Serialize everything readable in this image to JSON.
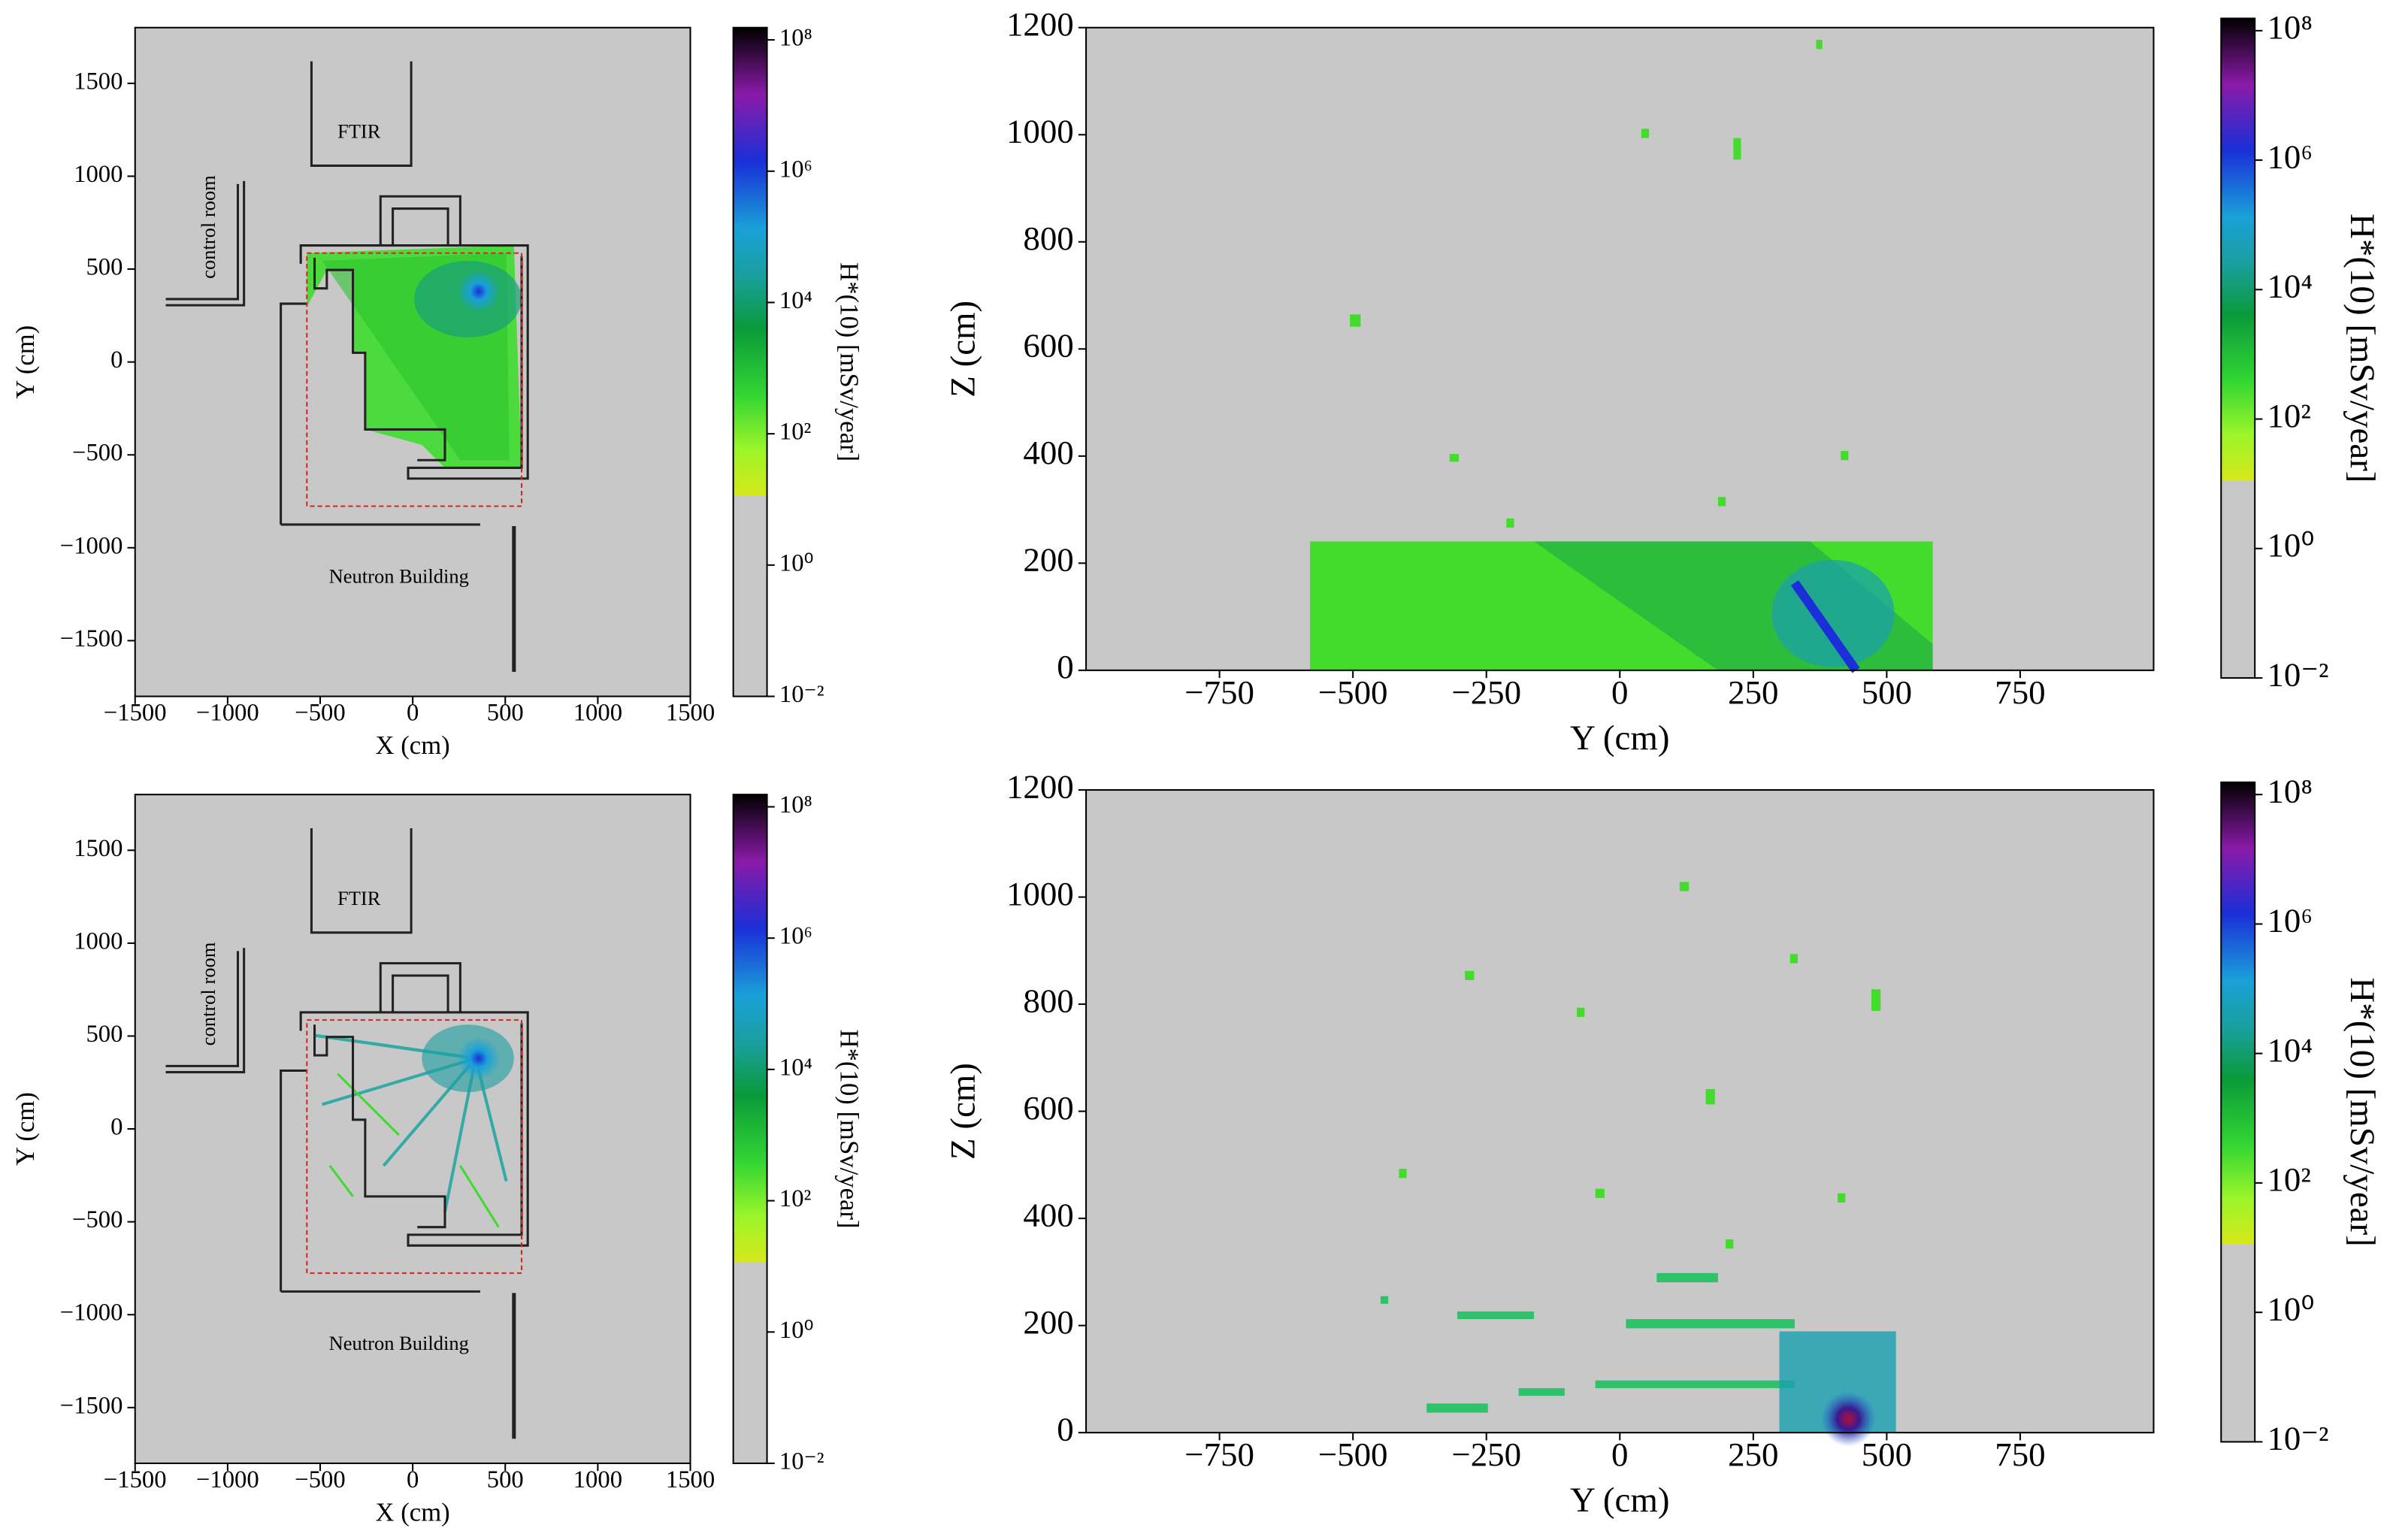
{
  "chart_data": [
    {
      "type": "heatmap",
      "xlabel": "X (cm)",
      "ylabel": "Y (cm)",
      "xlim": [
        -1500,
        1500
      ],
      "ylim": [
        -1800,
        1800
      ],
      "xticks": [
        {
          "value": -1500,
          "label": "−1500"
        },
        {
          "value": -1000,
          "label": "−1000"
        },
        {
          "value": -500,
          "label": "−500"
        },
        0,
        500,
        1000,
        1500
      ],
      "yticks": [
        {
          "value": -1500,
          "label": "−1500"
        },
        {
          "value": -1000,
          "label": "−1000"
        },
        {
          "value": -500,
          "label": "−500"
        },
        0,
        500,
        1000,
        1500
      ],
      "colorbar": {
        "label": "H*(10) [mSv/year]",
        "scale": "log",
        "lim": [
          0.01,
          100000000
        ],
        "ticks": [
          {
            "value": 0.01,
            "label": "10⁻²"
          },
          {
            "value": 1,
            "label": "10⁰"
          },
          {
            "value": 100,
            "label": "10²"
          },
          {
            "value": 10000,
            "label": "10⁴"
          },
          {
            "value": 1000000,
            "label": "10⁶"
          },
          {
            "value": 100000000,
            "label": "10⁸"
          }
        ]
      },
      "annotations": [
        "FTIR",
        "control room",
        "Neutron Building"
      ]
    },
    {
      "type": "heatmap",
      "xlabel": "Y (cm)",
      "ylabel": "Z (cm)",
      "xlim": [
        -1000,
        1000
      ],
      "ylim": [
        0,
        1200
      ],
      "xticks": [
        {
          "value": -750,
          "label": "−750"
        },
        {
          "value": -500,
          "label": "−500"
        },
        {
          "value": -250,
          "label": "−250"
        },
        0,
        250,
        500,
        750
      ],
      "yticks": [
        0,
        200,
        400,
        600,
        800,
        1000,
        1200
      ],
      "colorbar": {
        "label": "H*(10) [mSv/year]",
        "scale": "log",
        "lim": [
          0.01,
          100000000
        ],
        "ticks": [
          {
            "value": 0.01,
            "label": "10⁻²"
          },
          {
            "value": 1,
            "label": "10⁰"
          },
          {
            "value": 100,
            "label": "10²"
          },
          {
            "value": 10000,
            "label": "10⁴"
          },
          {
            "value": 1000000,
            "label": "10⁶"
          },
          {
            "value": 100000000,
            "label": "10⁸"
          }
        ]
      }
    },
    {
      "type": "heatmap",
      "xlabel": "X (cm)",
      "ylabel": "Y (cm)",
      "xlim": [
        -1500,
        1500
      ],
      "ylim": [
        -1800,
        1800
      ],
      "xticks": [
        {
          "value": -1500,
          "label": "−1500"
        },
        {
          "value": -1000,
          "label": "−1000"
        },
        {
          "value": -500,
          "label": "−500"
        },
        0,
        500,
        1000,
        1500
      ],
      "yticks": [
        {
          "value": -1500,
          "label": "−1500"
        },
        {
          "value": -1000,
          "label": "−1000"
        },
        {
          "value": -500,
          "label": "−500"
        },
        0,
        500,
        1000,
        1500
      ],
      "colorbar": {
        "label": "H*(10) [mSv/year]",
        "scale": "log",
        "lim": [
          0.01,
          100000000
        ],
        "ticks": [
          {
            "value": 0.01,
            "label": "10⁻²"
          },
          {
            "value": 1,
            "label": "10⁰"
          },
          {
            "value": 100,
            "label": "10²"
          },
          {
            "value": 10000,
            "label": "10⁴"
          },
          {
            "value": 1000000,
            "label": "10⁶"
          },
          {
            "value": 100000000,
            "label": "10⁸"
          }
        ]
      },
      "annotations": [
        "FTIR",
        "control room",
        "Neutron Building"
      ]
    },
    {
      "type": "heatmap",
      "xlabel": "Y (cm)",
      "ylabel": "Z (cm)",
      "xlim": [
        -1000,
        1000
      ],
      "ylim": [
        0,
        1200
      ],
      "xticks": [
        {
          "value": -750,
          "label": "−750"
        },
        {
          "value": -500,
          "label": "−500"
        },
        {
          "value": -250,
          "label": "−250"
        },
        0,
        250,
        500,
        750
      ],
      "yticks": [
        0,
        200,
        400,
        600,
        800,
        1000,
        1200
      ],
      "colorbar": {
        "label": "H*(10) [mSv/year]",
        "scale": "log",
        "lim": [
          0.01,
          100000000
        ],
        "ticks": [
          {
            "value": 0.01,
            "label": "10⁻²"
          },
          {
            "value": 1,
            "label": "10⁰"
          },
          {
            "value": 100,
            "label": "10²"
          },
          {
            "value": 10000,
            "label": "10⁴"
          },
          {
            "value": 1000000,
            "label": "10⁶"
          },
          {
            "value": 100000000,
            "label": "10⁸"
          }
        ]
      }
    }
  ]
}
